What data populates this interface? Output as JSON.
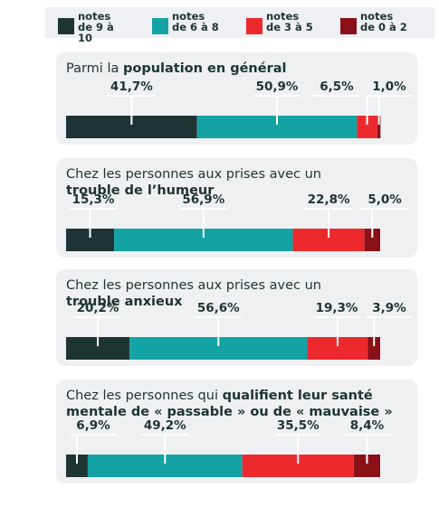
{
  "legend": [
    {
      "name": "notes de 9 à 10",
      "color": "#1e3433"
    },
    {
      "name": "notes de 6 à 8",
      "color": "#14a3a4"
    },
    {
      "name": "notes de 3 à 5",
      "color": "#ec2a2e"
    },
    {
      "name": "notes de 0 à 2",
      "color": "#8a1118"
    }
  ],
  "chart_data": [
    {
      "type": "stacked-bar",
      "title_lines": [
        [
          {
            "text": "Parmi la "
          },
          {
            "text": "population en général",
            "bold": true
          }
        ]
      ],
      "values": [
        41.7,
        50.9,
        6.5,
        1.0
      ],
      "value_labels": [
        "41,7%",
        "50,9%",
        "6,5%",
        "1,0%"
      ],
      "xlim": [
        0,
        100
      ]
    },
    {
      "type": "stacked-bar",
      "title_lines": [
        [
          {
            "text": "Chez les personnes aux prises avec un"
          }
        ],
        [
          {
            "text": "trouble de l’humeur",
            "bold": true
          }
        ]
      ],
      "values": [
        15.3,
        56.9,
        22.8,
        5.0
      ],
      "value_labels": [
        "15,3%",
        "56,9%",
        "22,8%",
        "5,0%"
      ],
      "xlim": [
        0,
        100
      ]
    },
    {
      "type": "stacked-bar",
      "title_lines": [
        [
          {
            "text": "Chez les personnes aux prises avec un"
          }
        ],
        [
          {
            "text": "trouble anxieux",
            "bold": true
          }
        ]
      ],
      "values": [
        20.2,
        56.6,
        19.3,
        3.9
      ],
      "value_labels": [
        "20,2%",
        "56,6%",
        "19,3%",
        "3,9%"
      ],
      "xlim": [
        0,
        100
      ]
    },
    {
      "type": "stacked-bar",
      "title_lines": [
        [
          {
            "text": "Chez les personnes qui "
          },
          {
            "text": "qualifient leur santé",
            "bold": true
          }
        ],
        [
          {
            "text": "mentale de « passable » ou de « mauvaise »",
            "bold": true
          }
        ]
      ],
      "values": [
        6.9,
        49.2,
        35.5,
        8.4
      ],
      "value_labels": [
        "6,9%",
        "49,2%",
        "35,5%",
        "8,4%"
      ],
      "xlim": [
        0,
        100
      ]
    }
  ]
}
